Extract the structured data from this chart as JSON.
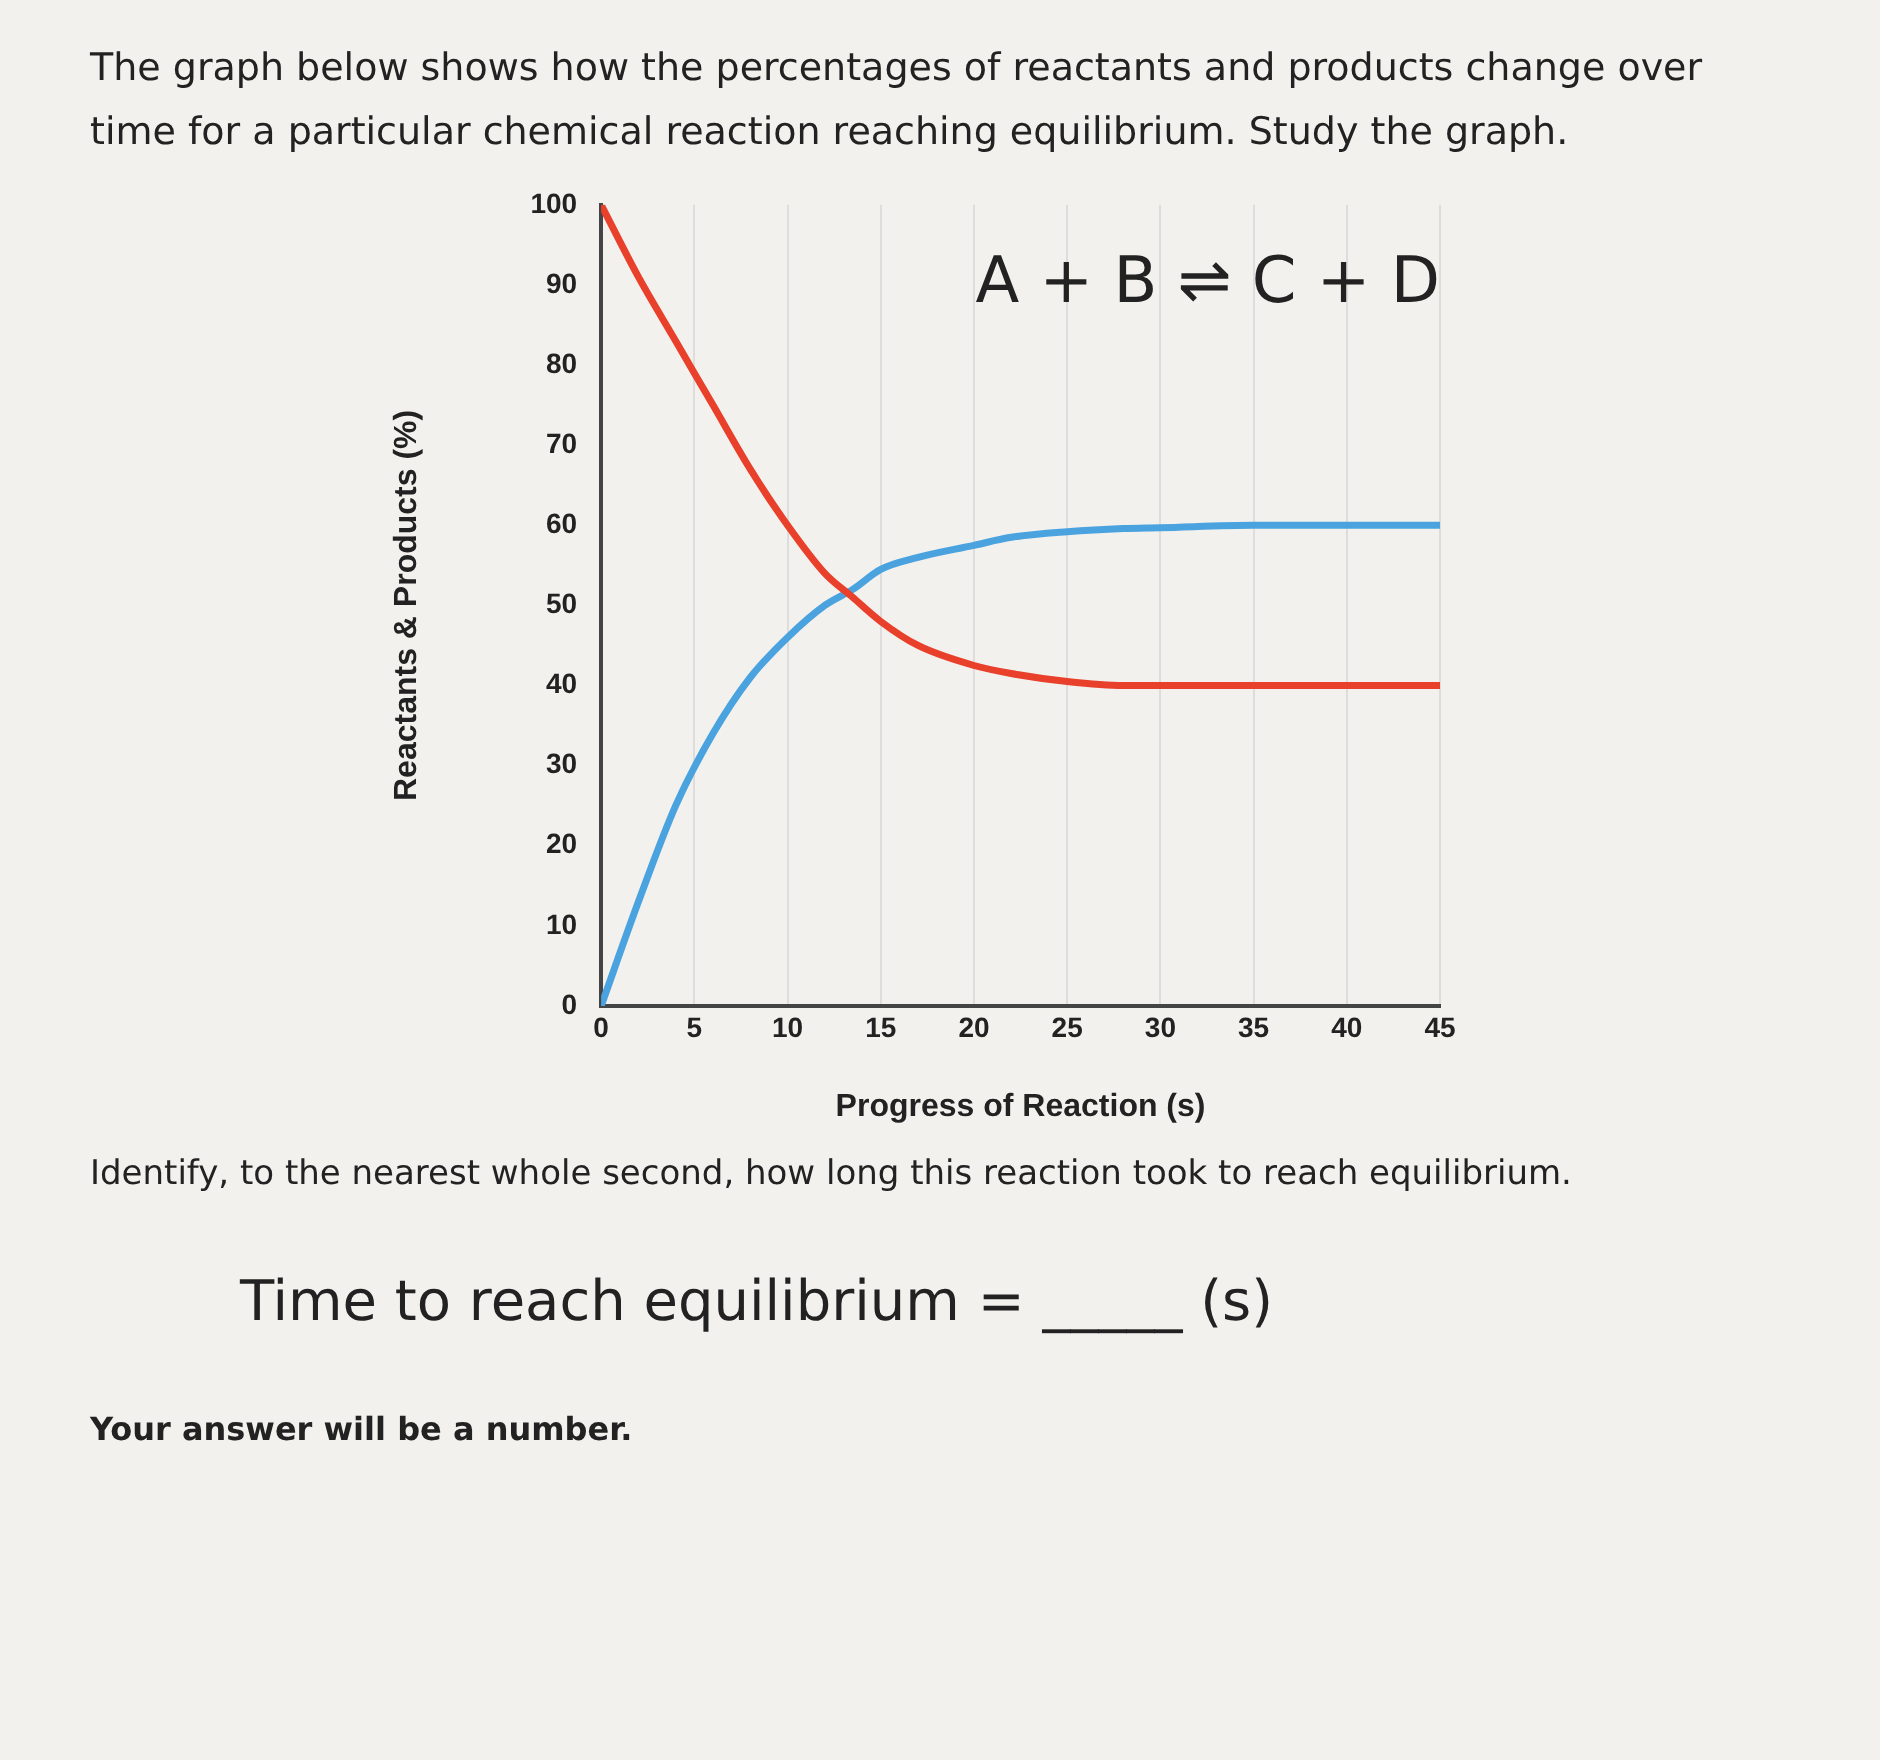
{
  "chart_data": {
    "type": "line",
    "title": "The graph below shows how the percentages of reactants and products change over time for a particular chemical reaction reaching equilibrium. Study the graph.",
    "xlabel": "Progress of Reaction (s)",
    "ylabel": "Reactants & Products (%)",
    "annotations": [
      "A + B ⇌ C + D",
      "Identify, to the nearest whole second, how long this reaction took to reach equilibrium.",
      "Time to reach equilibrium = _____ (s)",
      "Your answer will be a number."
    ],
    "x": [
      0,
      2,
      4,
      6,
      8,
      10,
      12,
      13.5,
      15,
      17,
      20,
      22,
      25,
      28,
      30,
      35,
      40,
      45
    ],
    "series": [
      {
        "color": "#e8402a",
        "values": [
          100,
          91,
          83,
          75,
          67,
          60,
          54,
          51,
          48,
          45,
          42.5,
          41.5,
          40.5,
          40,
          40,
          40,
          40,
          40
        ]
      },
      {
        "color": "#4aa3df",
        "values": [
          0,
          13,
          25,
          34,
          41,
          46,
          50,
          52,
          54.5,
          56,
          57.5,
          58.5,
          59.2,
          59.6,
          59.7,
          60,
          60,
          60
        ]
      }
    ],
    "xlim": [
      0,
      45
    ],
    "xticks": [
      0,
      5,
      10,
      15,
      20,
      25,
      30,
      35,
      40,
      45
    ],
    "ylim": [
      0,
      100
    ],
    "yticks": [
      0,
      10,
      20,
      30,
      40,
      50,
      60,
      70,
      80,
      90,
      100
    ],
    "grid": "x",
    "legend": false,
    "marker": "none",
    "line_style": "solid"
  }
}
